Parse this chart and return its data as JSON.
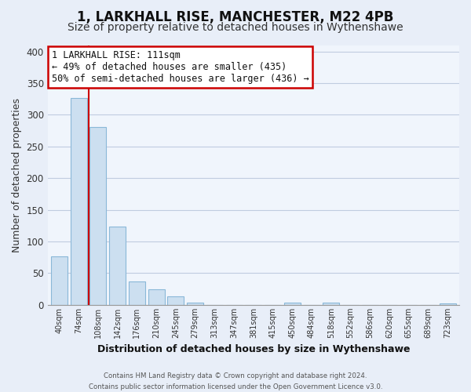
{
  "title": "1, LARKHALL RISE, MANCHESTER, M22 4PB",
  "subtitle": "Size of property relative to detached houses in Wythenshawe",
  "xlabel": "Distribution of detached houses by size in Wythenshawe",
  "ylabel": "Number of detached properties",
  "footer_line1": "Contains HM Land Registry data © Crown copyright and database right 2024.",
  "footer_line2": "Contains public sector information licensed under the Open Government Licence v3.0.",
  "bar_labels": [
    "40sqm",
    "74sqm",
    "108sqm",
    "142sqm",
    "176sqm",
    "210sqm",
    "245sqm",
    "279sqm",
    "313sqm",
    "347sqm",
    "381sqm",
    "415sqm",
    "450sqm",
    "484sqm",
    "518sqm",
    "552sqm",
    "586sqm",
    "620sqm",
    "655sqm",
    "689sqm",
    "723sqm"
  ],
  "bar_values": [
    76,
    327,
    281,
    123,
    37,
    24,
    14,
    3,
    0,
    0,
    0,
    0,
    4,
    0,
    3,
    0,
    0,
    0,
    0,
    0,
    2
  ],
  "bar_color": "#ccdff0",
  "bar_edge_color": "#8ab8d8",
  "vline_color": "#cc0000",
  "annotation_text": "1 LARKHALL RISE: 111sqm\n← 49% of detached houses are smaller (435)\n50% of semi-detached houses are larger (436) →",
  "annotation_box_color": "white",
  "annotation_box_edge_color": "#cc0000",
  "ylim": [
    0,
    410
  ],
  "yticks": [
    0,
    50,
    100,
    150,
    200,
    250,
    300,
    350,
    400
  ],
  "background_color": "#e8eef8",
  "plot_background_color": "#f0f5fc",
  "grid_color": "#c0cce0",
  "title_fontsize": 12,
  "subtitle_fontsize": 10,
  "xlabel_fontsize": 9,
  "ylabel_fontsize": 9
}
